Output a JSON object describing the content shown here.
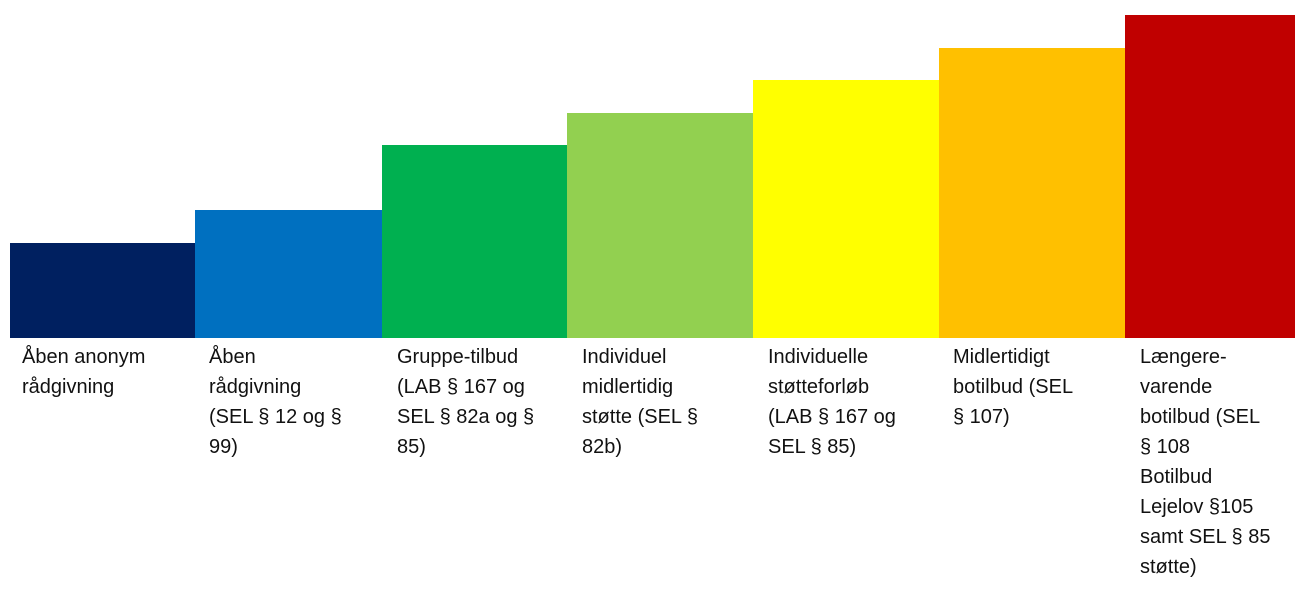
{
  "steps": [
    {
      "label": "Åben anonym\nrådgivning",
      "color": "#002060"
    },
    {
      "label": "Åben\nrådgivning\n(SEL § 12 og §\n99)",
      "color": "#0070C0"
    },
    {
      "label": "Gruppe-tilbud\n(LAB § 167 og\nSEL § 82a og §\n85)",
      "color": "#00B050"
    },
    {
      "label": "Individuel\nmidlertidig\nstøtte (SEL §\n82b)",
      "color": "#92D050"
    },
    {
      "label": "Individuelle\nstøtteforløb\n(LAB § 167 og\nSEL § 85)",
      "color": "#FFFF00"
    },
    {
      "label": "Midlertidigt\nbotilbud (SEL\n§ 107)",
      "color": "#FFC000"
    },
    {
      "label": "Længere-\nvarende\nbotilbud (SEL\n§ 108\nBotilbud\nLejelov §105\nsamt SEL § 85\nstøtte)",
      "color": "#C00000"
    }
  ]
}
